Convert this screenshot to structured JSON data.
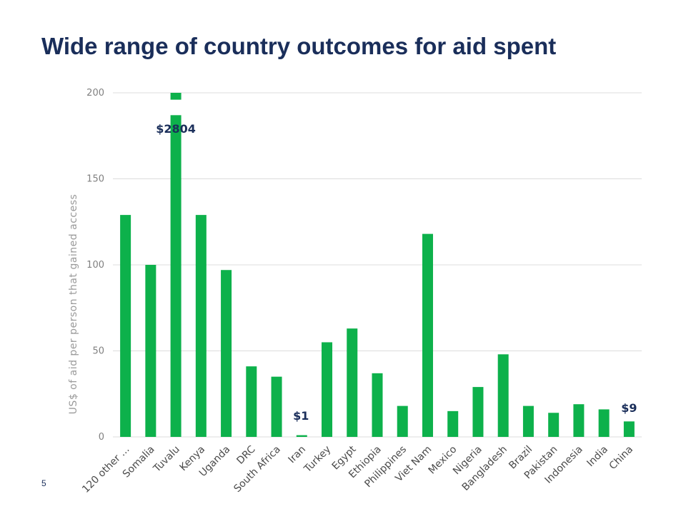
{
  "slide": {
    "title": "Wide range of country outcomes for aid spent",
    "page_number": "5"
  },
  "chart_data": {
    "type": "bar",
    "title": "",
    "ylabel": "US$ of aid per person that gained access",
    "xlabel": "",
    "ylim": [
      0,
      200
    ],
    "yticks": [
      0,
      50,
      100,
      150,
      200
    ],
    "grid": true,
    "bar_color": "#0db14b",
    "categories": [
      "120 other ...",
      "Somalia",
      "Tuvalu",
      "Kenya",
      "Uganda",
      "DRC",
      "South Africa",
      "Iran",
      "Turkey",
      "Egypt",
      "Ethiopia",
      "Philippines",
      "Viet Nam",
      "Mexico",
      "Nigeria",
      "Bangladesh",
      "Brazil",
      "Pakistan",
      "Indonesia",
      "India",
      "China"
    ],
    "values": [
      129,
      100,
      2804,
      129,
      97,
      41,
      35,
      1,
      55,
      63,
      37,
      18,
      118,
      15,
      29,
      48,
      18,
      14,
      19,
      16,
      9
    ],
    "axis_break": {
      "category": "Tuvalu",
      "break_between_values": [
        187,
        196
      ]
    },
    "annotations": [
      {
        "category": "Tuvalu",
        "text": "$2804"
      },
      {
        "category": "Iran",
        "text": "$1"
      },
      {
        "category": "China",
        "text": "$9"
      }
    ]
  }
}
